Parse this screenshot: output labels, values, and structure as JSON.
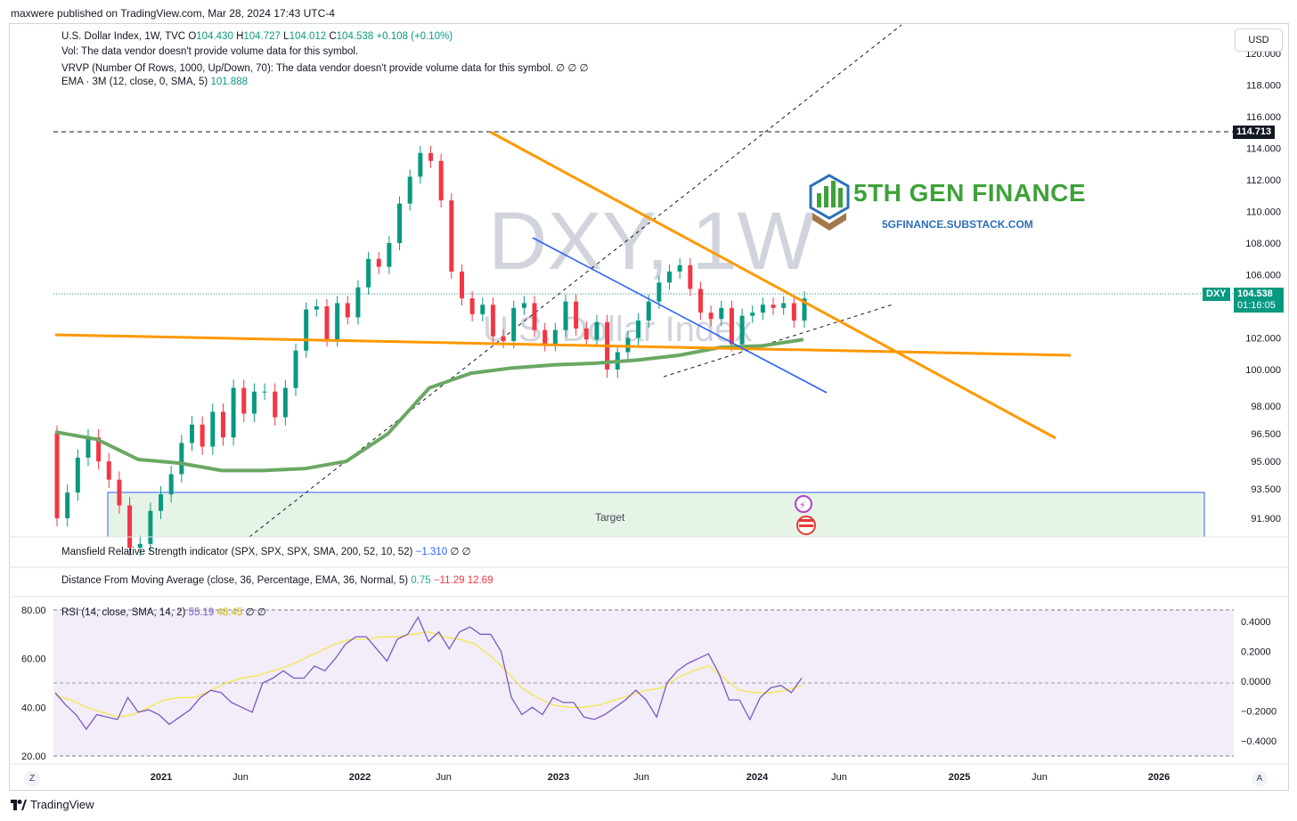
{
  "header": {
    "published": "maxwere published on TradingView.com, Mar 28, 2024 17:43 UTC-4",
    "currency": "USD"
  },
  "legend": {
    "symbol": "U.S. Dollar Index, 1W, TVC",
    "o_label": "O",
    "o_val": "104.430",
    "h_label": "H",
    "h_val": "104.727",
    "l_label": "L",
    "l_val": "104.012",
    "c_label": "C",
    "c_val": "104.538",
    "change": "+0.108 (+0.10%)",
    "vol": "Vol: The data vendor doesn't provide volume data for this symbol.",
    "vrvp": "VRVP (Number Of Rows, 1000, Up/Down, 70): The data vendor doesn't provide volume data for this symbol.",
    "vrvp_vals": "∅ ∅ ∅",
    "ema": "EMA · 3M (12, close, 0, SMA, 5)",
    "ema_val": "101.888",
    "mansfield": "Mansfield Relative Strength indicator (SPX, SPX, SPX, SMA, 200, 52, 10, 52)",
    "mansfield_val": "−1.310",
    "mansfield_tail": "∅ ∅",
    "dma": "Distance From Moving Average (close, 36, Percentage, EMA, 36, Normal, 5)",
    "dma_v1": "0.75",
    "dma_v2": "−11.29",
    "dma_v3": "12.69",
    "rsi": "RSI (14, close, SMA, 14, 2)",
    "rsi_v1": "55.19",
    "rsi_v2": "48.45",
    "rsi_tail": "∅ ∅"
  },
  "watermark": {
    "line1": "DXY, 1W",
    "line2": "U.S. Dollar Index"
  },
  "brand": {
    "title": "5TH GEN FINANCE",
    "url": "5GFINANCE.SUBSTACK.COM"
  },
  "annotations": {
    "target": "Target"
  },
  "price_tags": {
    "high": "114.713",
    "symbol": "DXY",
    "last": "104.538",
    "countdown": "01:16:05"
  },
  "footer": {
    "logo": "TradingView",
    "left_btn": "Z",
    "right_btn": "A"
  },
  "colors": {
    "up": "#089981",
    "down": "#f23645",
    "orange": "#ff9800",
    "blue": "#2962ff",
    "ema": "#6aa863",
    "rsi": "#7e57c2",
    "rsi_ma": "#f7e53c",
    "target_fill": "#e6f4e8"
  },
  "chart_data": {
    "type": "candlestick",
    "price_axis": {
      "ticks": [
        "120.000",
        "118.000",
        "116.000",
        "114.000",
        "112.000",
        "110.000",
        "108.000",
        "106.000",
        "102.000",
        "100.000",
        "98.000",
        "96.500",
        "95.000",
        "93.500",
        "91.900"
      ]
    },
    "time_axis": [
      "2021",
      "Jun",
      "2022",
      "Jun",
      "2023",
      "Jun",
      "2024",
      "Jun",
      "2025",
      "Jun",
      "2026"
    ],
    "price_series": {
      "name": "DXY",
      "close": [
        91.9,
        93.3,
        95.2,
        96.3,
        95.0,
        94.0,
        92.6,
        90.3,
        90.5,
        92.3,
        93.2,
        94.3,
        96.0,
        97.0,
        95.8,
        97.7,
        96.3,
        99.0,
        97.6,
        98.8,
        98.8,
        97.4,
        99.0,
        101.2,
        103.8,
        104.0,
        101.9,
        104.2,
        103.3,
        105.2,
        107.0,
        106.5,
        108.0,
        110.5,
        112.2,
        113.7,
        113.2,
        110.7,
        106.2,
        104.5,
        103.5,
        104.1,
        102.1,
        101.8,
        103.9,
        104.2,
        102.5,
        101.6,
        102.5,
        104.3,
        102.6,
        101.9,
        103.0,
        100.0,
        101.1,
        102.0,
        103.1,
        104.3,
        105.5,
        106.2,
        106.6,
        105.1,
        103.6,
        103.2,
        103.9,
        101.6,
        103.4,
        103.6,
        104.1,
        103.9,
        104.2,
        103.1,
        104.5
      ],
      "ema_3m": [
        96.6,
        96.2,
        95.1,
        94.9,
        94.5,
        94.5,
        94.6,
        95.0,
        96.5,
        99.0,
        99.8,
        100.1,
        100.3,
        100.4,
        100.6,
        100.9,
        101.4,
        101.5,
        101.9
      ],
      "annotations": {
        "high": 114.713,
        "last": 104.538,
        "ema": 101.888
      }
    },
    "rsi": {
      "axis": [
        "80.00",
        "60.00",
        "40.00",
        "20.00"
      ],
      "rsi": [
        46,
        41,
        37,
        31,
        37,
        36,
        35,
        44,
        38,
        39,
        37,
        33,
        36,
        39,
        44,
        47,
        46,
        42,
        40,
        38,
        50,
        52,
        55,
        52,
        52,
        57,
        55,
        60,
        66,
        69,
        69,
        64,
        59,
        68,
        70,
        77,
        67,
        71,
        64,
        71,
        73,
        70,
        70,
        63,
        44,
        37,
        40,
        37,
        44,
        42,
        42,
        36,
        35,
        37,
        40,
        43,
        47,
        43,
        36,
        50,
        55,
        58,
        60,
        62,
        54,
        43,
        43,
        35,
        44,
        48,
        49,
        46,
        52
      ],
      "ma": [
        45,
        43,
        40,
        38,
        36,
        37,
        40,
        43,
        44,
        44,
        47,
        50,
        52,
        53,
        55,
        57,
        60,
        63,
        66,
        68,
        68,
        69,
        69,
        70,
        71,
        69,
        68,
        66,
        61,
        55,
        48,
        44,
        41,
        40,
        40,
        41,
        43,
        45,
        47,
        48,
        52,
        55,
        57,
        52,
        47,
        46,
        46,
        47,
        49
      ]
    },
    "dma": {
      "axis": [
        "0.4000",
        "0.2000",
        "0.0000",
        "−0.2000",
        "−0.4000"
      ]
    }
  }
}
